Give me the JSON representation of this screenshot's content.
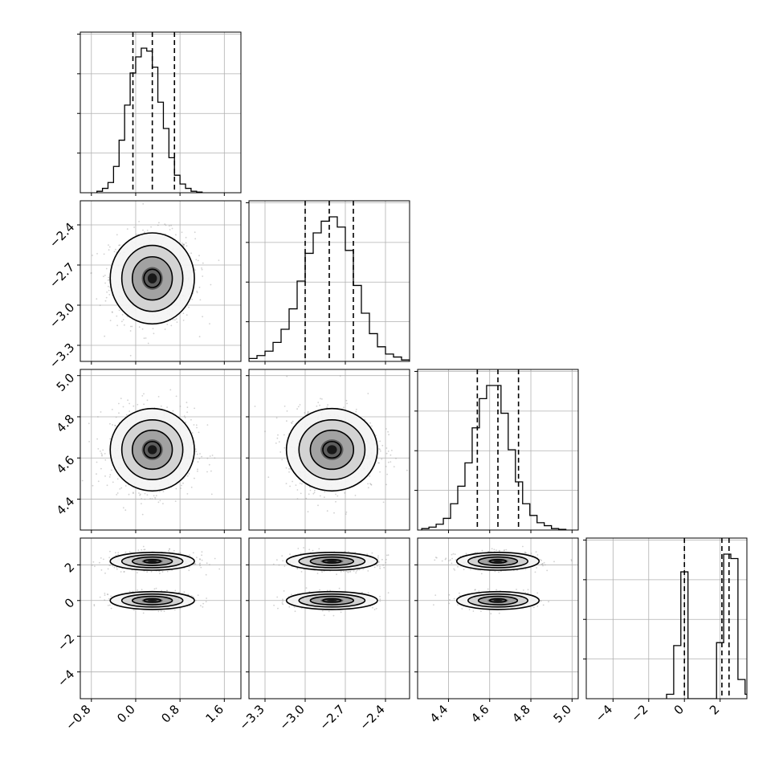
{
  "chart_data": {
    "type": "corner",
    "parameters": [
      {
        "range": [
          -1.0,
          1.9
        ],
        "ticks": [
          -0.8,
          0.0,
          0.8,
          1.6
        ],
        "tick_labels": [
          "−0.8",
          "0.0",
          "0.8",
          "1.6"
        ],
        "hist": {
          "edges_start": -0.7,
          "bin_width": 0.1,
          "counts": [
            0.01,
            0.03,
            0.07,
            0.18,
            0.36,
            0.6,
            0.82,
            0.93,
            0.99,
            0.97,
            0.86,
            0.62,
            0.44,
            0.24,
            0.12,
            0.06,
            0.03,
            0.01,
            0.005
          ]
        },
        "quantiles": [
          -0.05,
          0.3,
          0.7
        ],
        "mean": 0.3,
        "sd": 0.38
      },
      {
        "range": [
          -3.42,
          -2.22
        ],
        "ticks": [
          -3.3,
          -3.0,
          -2.7,
          -2.4
        ],
        "tick_labels": [
          "−3.3",
          "−3.0",
          "−2.7",
          "−2.4"
        ],
        "hist": {
          "edges_start": -3.42,
          "bin_width": 0.06,
          "counts": [
            0.02,
            0.04,
            0.07,
            0.13,
            0.22,
            0.36,
            0.55,
            0.74,
            0.88,
            0.96,
            0.99,
            0.92,
            0.76,
            0.52,
            0.33,
            0.19,
            0.1,
            0.05,
            0.03,
            0.01
          ]
        },
        "quantiles": [
          -3.0,
          -2.82,
          -2.64
        ],
        "mean": -2.8,
        "sd": 0.17
      },
      {
        "range": [
          4.25,
          5.03
        ],
        "ticks": [
          4.4,
          4.6,
          4.8,
          5.0
        ],
        "tick_labels": [
          "4.4",
          "4.6",
          "4.8",
          "5.0"
        ],
        "hist": {
          "edges_start": 4.27,
          "bin_width": 0.035,
          "counts": [
            0.01,
            0.02,
            0.04,
            0.08,
            0.18,
            0.3,
            0.46,
            0.7,
            0.9,
            0.99,
            0.99,
            0.8,
            0.55,
            0.33,
            0.18,
            0.1,
            0.05,
            0.03,
            0.01,
            0.005
          ]
        },
        "quantiles": [
          4.54,
          4.64,
          4.74
        ],
        "mean": 4.64,
        "sd": 0.1
      },
      {
        "range": [
          -5.5,
          3.5
        ],
        "ticks": [
          -4,
          -2,
          0,
          2
        ],
        "tick_labels": [
          "−4",
          "−2",
          "0",
          "2"
        ],
        "hist": {
          "edges_start": -1.0,
          "bin_width": 0.4,
          "counts": [
            0.03,
            0.36,
            0.86,
            0.0,
            0.0,
            0.0,
            0.0,
            0.38,
            0.98,
            0.95,
            0.13,
            0.03
          ]
        },
        "quantiles": [
          0.0,
          2.1,
          2.5
        ]
      }
    ],
    "diag_yticks": 4,
    "grid": true
  }
}
